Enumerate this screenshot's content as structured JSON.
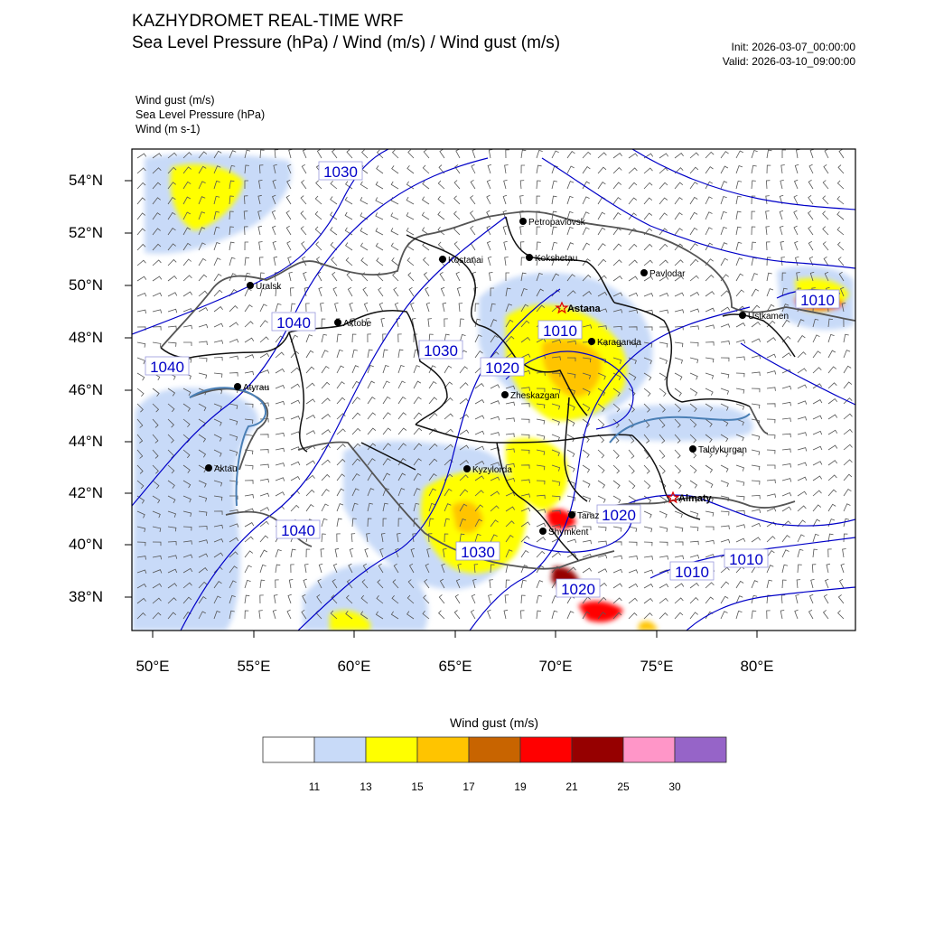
{
  "header": {
    "title": "KAZHYDROMET REAL-TIME WRF",
    "subtitle": "Sea Level Pressure  (hPa) / Wind  (m/s) / Wind gust  (m/s)",
    "init": "Init: 2026-03-07_00:00:00",
    "valid": "Valid: 2026-03-10_09:00:00"
  },
  "layers": [
    "Wind gust   (m/s)",
    "Sea Level Pressure   (hPa)",
    "Wind   (m s-1)"
  ],
  "map": {
    "lon_range": [
      49,
      85
    ],
    "lat_range": [
      36.7,
      55.2
    ],
    "lat_ticks": [
      "54°N",
      "52°N",
      "50°N",
      "48°N",
      "46°N",
      "44°N",
      "42°N",
      "40°N",
      "38°N"
    ],
    "lon_ticks": [
      "50°E",
      "55°E",
      "60°E",
      "65°E",
      "70°E",
      "75°E",
      "80°E"
    ],
    "isobar_labels": [
      "1030",
      "1040",
      "1040",
      "1030",
      "1010",
      "1020",
      "1040",
      "1030",
      "1020",
      "1020",
      "1010",
      "1010",
      "1010"
    ],
    "cities": [
      {
        "name": "Petropavlovsk",
        "capital": false
      },
      {
        "name": "Kostanai",
        "capital": false
      },
      {
        "name": "Kokshetau",
        "capital": false
      },
      {
        "name": "Pavlodar",
        "capital": false
      },
      {
        "name": "Uralsk",
        "capital": false
      },
      {
        "name": "Astana",
        "capital": true
      },
      {
        "name": "Ustkamen",
        "capital": false
      },
      {
        "name": "Aktobe",
        "capital": false
      },
      {
        "name": "Karaganda",
        "capital": false
      },
      {
        "name": "Atyrau",
        "capital": false
      },
      {
        "name": "Zheskazgan",
        "capital": false
      },
      {
        "name": "Taldykurgan",
        "capital": false
      },
      {
        "name": "Aktau",
        "capital": false
      },
      {
        "name": "Kyzylorda",
        "capital": false
      },
      {
        "name": "Almaty",
        "capital": true
      },
      {
        "name": "Taraz",
        "capital": false
      },
      {
        "name": "Shymkent",
        "capital": false
      }
    ]
  },
  "colorbar": {
    "title": "Wind gust (m/s)",
    "labels": [
      "11",
      "13",
      "15",
      "17",
      "19",
      "21",
      "25",
      "30"
    ],
    "colors": [
      "#ffffff",
      "#c8daf8",
      "#ffff00",
      "#ffc400",
      "#c86400",
      "#ff0000",
      "#960000",
      "#ff96c8",
      "#9664c8"
    ]
  }
}
